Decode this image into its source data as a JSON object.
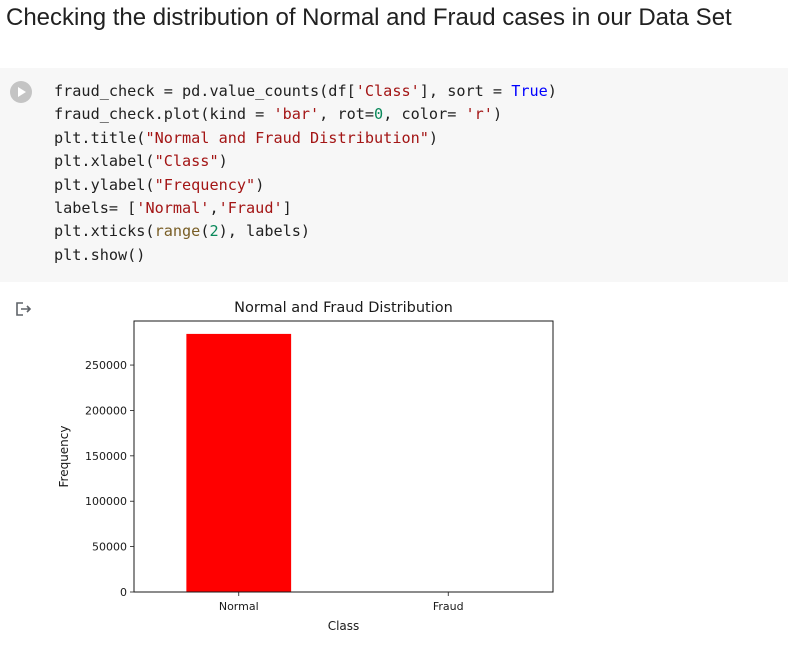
{
  "heading": "Checking the distribution of Normal and Fraud cases in our Data Set",
  "code_cell": {
    "run_icon": "play-icon",
    "lines": [
      [
        {
          "t": "fraud_check = pd.value_counts(df[",
          "c": ""
        },
        {
          "t": "'Class'",
          "c": "str"
        },
        {
          "t": "], sort = ",
          "c": ""
        },
        {
          "t": "True",
          "c": "kw"
        },
        {
          "t": ")",
          "c": ""
        }
      ],
      [
        {
          "t": "fraud_check.plot(kind = ",
          "c": ""
        },
        {
          "t": "'bar'",
          "c": "str"
        },
        {
          "t": ", rot=",
          "c": ""
        },
        {
          "t": "0",
          "c": "num"
        },
        {
          "t": ", color= ",
          "c": ""
        },
        {
          "t": "'r'",
          "c": "str"
        },
        {
          "t": ")",
          "c": ""
        }
      ],
      [
        {
          "t": "plt.title(",
          "c": ""
        },
        {
          "t": "\"Normal and Fraud Distribution\"",
          "c": "str"
        },
        {
          "t": ")",
          "c": ""
        }
      ],
      [
        {
          "t": "plt.xlabel(",
          "c": ""
        },
        {
          "t": "\"Class\"",
          "c": "str"
        },
        {
          "t": ")",
          "c": ""
        }
      ],
      [
        {
          "t": "plt.ylabel(",
          "c": ""
        },
        {
          "t": "\"Frequency\"",
          "c": "str"
        },
        {
          "t": ")",
          "c": ""
        }
      ],
      [
        {
          "t": "labels= [",
          "c": ""
        },
        {
          "t": "'Normal'",
          "c": "str"
        },
        {
          "t": ",",
          "c": ""
        },
        {
          "t": "'Fraud'",
          "c": "str"
        },
        {
          "t": "]",
          "c": ""
        }
      ],
      [
        {
          "t": "plt.xticks(",
          "c": ""
        },
        {
          "t": "range",
          "c": "bi"
        },
        {
          "t": "(",
          "c": ""
        },
        {
          "t": "2",
          "c": "num"
        },
        {
          "t": "), labels)",
          "c": ""
        }
      ],
      [
        {
          "t": "plt.show()",
          "c": ""
        }
      ]
    ]
  },
  "output": {
    "icon": "output-redirect-icon"
  },
  "chart_data": {
    "type": "bar",
    "title": "Normal and Fraud Distribution",
    "xlabel": "Class",
    "ylabel": "Frequency",
    "categories": [
      "Normal",
      "Fraud"
    ],
    "values": [
      284315,
      492
    ],
    "ylim": [
      0,
      298531
    ],
    "yticks": [
      0,
      50000,
      100000,
      150000,
      200000,
      250000
    ],
    "color": "#ff0000",
    "grid": false
  }
}
